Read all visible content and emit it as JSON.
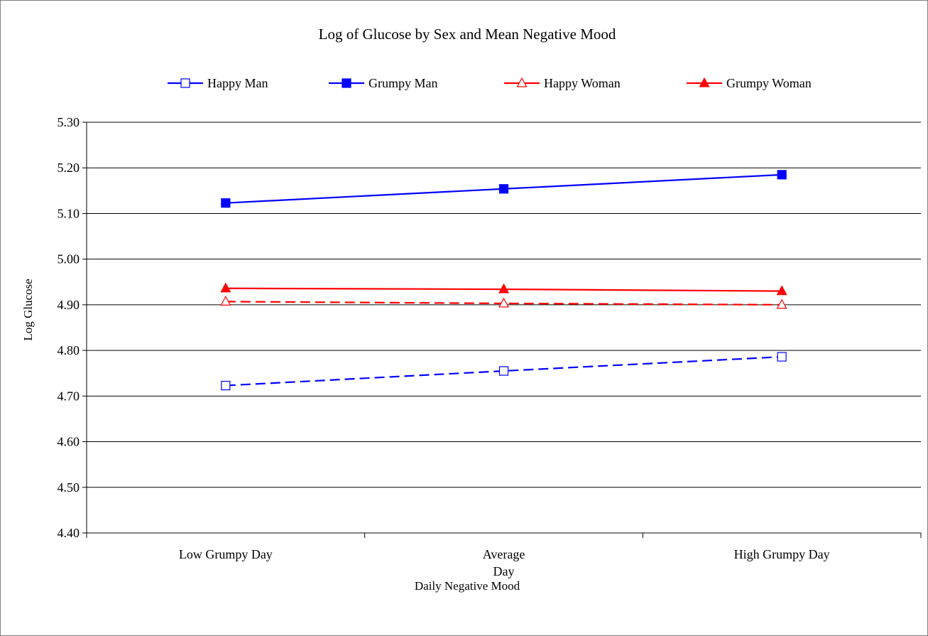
{
  "chart_data": {
    "type": "line",
    "title": "Log of Glucose by Sex and Mean Negative Mood",
    "xlabel": "Daily Negative Mood",
    "ylabel": "Log Glucose",
    "categories": [
      [
        "Low Grumpy Day"
      ],
      [
        "Average",
        "Day"
      ],
      [
        "High Grumpy Day"
      ]
    ],
    "ylim": [
      4.4,
      5.3
    ],
    "yticks": [
      "4.40",
      "4.50",
      "4.60",
      "4.70",
      "4.80",
      "4.90",
      "5.00",
      "5.10",
      "5.20",
      "5.30"
    ],
    "grid": "horizontal",
    "legend_position": "top",
    "series": [
      {
        "name": "Happy Man",
        "color": "#0000FF",
        "marker": "square-open",
        "line_style": "dashed",
        "values": [
          4.723,
          4.755,
          4.786
        ]
      },
      {
        "name": "Grumpy Man",
        "color": "#0000FF",
        "marker": "square-filled",
        "line_style": "solid",
        "values": [
          5.123,
          5.154,
          5.185
        ]
      },
      {
        "name": "Happy Woman",
        "color": "#FF0000",
        "marker": "triangle-open",
        "line_style": "dashed",
        "values": [
          4.907,
          4.903,
          4.9
        ]
      },
      {
        "name": "Grumpy Woman",
        "color": "#FF0000",
        "marker": "triangle-filled",
        "line_style": "solid",
        "values": [
          4.936,
          4.934,
          4.93
        ]
      }
    ]
  }
}
